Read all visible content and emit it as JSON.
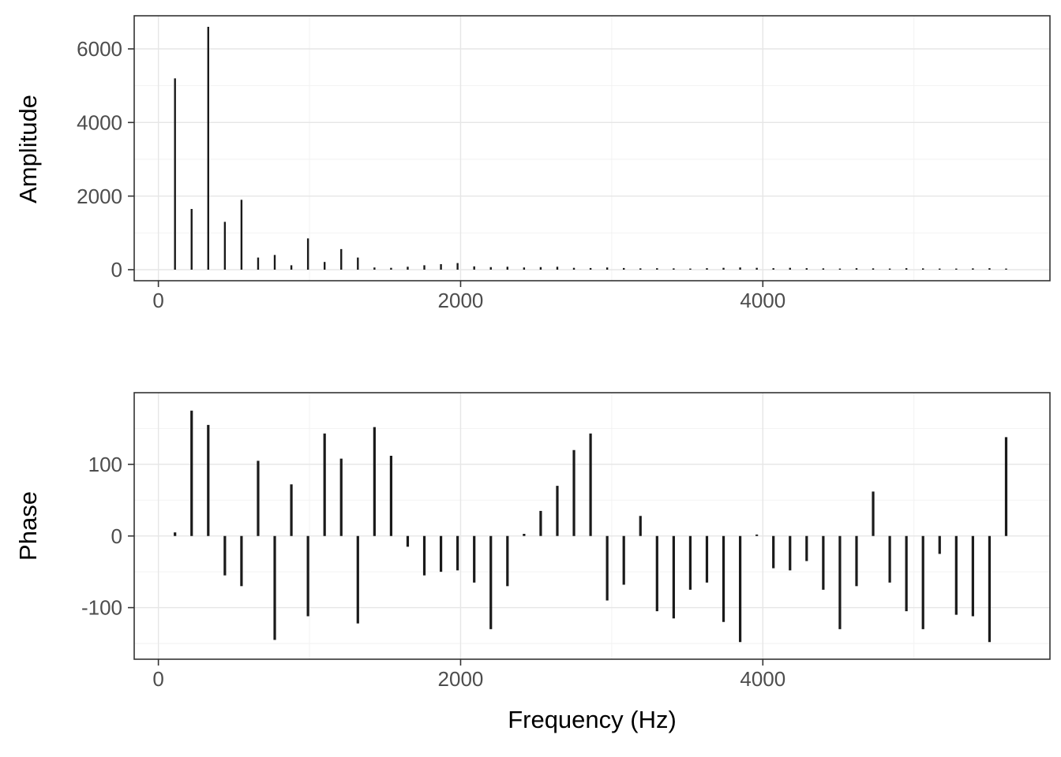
{
  "figure": {
    "background": "#ffffff",
    "bar_color": "#1a1a1a",
    "grid_major_color": "#e6e6e6",
    "grid_minor_color": "#f2f2f2",
    "panel_border_color": "#333333",
    "tick_color": "#333333",
    "axis_text_color": "#4d4d4d",
    "axis_title_color": "#000000"
  },
  "chart_data": [
    {
      "type": "bar",
      "mark": "stem",
      "title": "",
      "xlabel": "",
      "ylabel": "Amplitude",
      "x": [
        110,
        220,
        330,
        440,
        550,
        660,
        770,
        880,
        990,
        1100,
        1210,
        1320,
        1430,
        1540,
        1650,
        1760,
        1870,
        1980,
        2090,
        2200,
        2310,
        2420,
        2530,
        2640,
        2750,
        2860,
        2970,
        3080,
        3190,
        3300,
        3410,
        3520,
        3630,
        3740,
        3850,
        3960,
        4070,
        4180,
        4290,
        4400,
        4510,
        4620,
        4730,
        4840,
        4950,
        5060,
        5170,
        5280,
        5390,
        5500,
        5610
      ],
      "values": [
        5200,
        1650,
        6600,
        1300,
        1900,
        330,
        400,
        120,
        850,
        210,
        560,
        330,
        60,
        50,
        80,
        120,
        150,
        180,
        90,
        70,
        80,
        60,
        70,
        80,
        50,
        45,
        60,
        45,
        35,
        40,
        35,
        30,
        40,
        50,
        60,
        50,
        40,
        50,
        40,
        35,
        30,
        40,
        35,
        30,
        40,
        35,
        30,
        30,
        35,
        40,
        30
      ],
      "xlim": [
        -160,
        5900
      ],
      "ylim": [
        -300,
        6900
      ],
      "x_ticks": [
        0,
        2000,
        4000
      ],
      "y_ticks": [
        0,
        2000,
        4000,
        6000
      ],
      "x_minor": [
        1000,
        3000,
        5000
      ],
      "y_minor": [
        1000,
        3000,
        5000
      ],
      "grid": true,
      "legend": "none"
    },
    {
      "type": "bar",
      "mark": "stem",
      "title": "",
      "xlabel": "Frequency (Hz)",
      "ylabel": "Phase",
      "x": [
        110,
        220,
        330,
        440,
        550,
        660,
        770,
        880,
        990,
        1100,
        1210,
        1320,
        1430,
        1540,
        1650,
        1760,
        1870,
        1980,
        2090,
        2200,
        2310,
        2420,
        2530,
        2640,
        2750,
        2860,
        2970,
        3080,
        3190,
        3300,
        3410,
        3520,
        3630,
        3740,
        3850,
        3960,
        4070,
        4180,
        4290,
        4400,
        4510,
        4620,
        4730,
        4840,
        4950,
        5060,
        5170,
        5280,
        5390,
        5500,
        5610
      ],
      "values": [
        5,
        175,
        155,
        -55,
        -70,
        105,
        -145,
        72,
        -112,
        143,
        108,
        -122,
        152,
        112,
        -15,
        -55,
        -50,
        -48,
        -65,
        -130,
        -70,
        3,
        35,
        70,
        120,
        143,
        -90,
        -68,
        28,
        -105,
        -115,
        -75,
        -65,
        -120,
        -148,
        2,
        -45,
        -48,
        -35,
        -75,
        -130,
        -70,
        62,
        -65,
        -105,
        -130,
        -25,
        -110,
        -112,
        -148,
        138
      ],
      "xlim": [
        -160,
        5900
      ],
      "ylim": [
        -172,
        200
      ],
      "x_ticks": [
        0,
        2000,
        4000
      ],
      "y_ticks": [
        -100,
        0,
        100
      ],
      "x_minor": [
        1000,
        3000,
        5000
      ],
      "y_minor": [
        -150,
        -50,
        50,
        150
      ],
      "grid": true,
      "legend": "none"
    }
  ]
}
